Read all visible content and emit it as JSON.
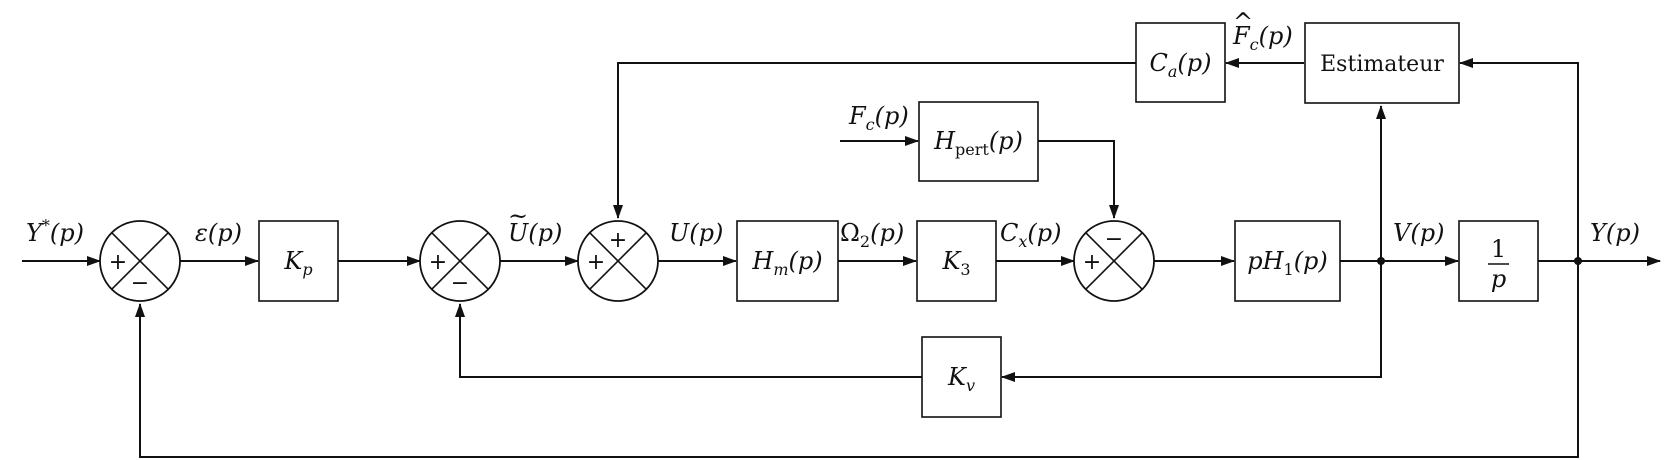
{
  "blocks": {
    "kp": {
      "sym": "K",
      "sub": "p",
      "arg": ""
    },
    "hm": {
      "sym": "H",
      "sub": "m",
      "arg": "(p)"
    },
    "k3": {
      "sym": "K",
      "sub": "3",
      "arg": ""
    },
    "ph1": {
      "pre": "pH",
      "sub": "1",
      "arg": "(p)"
    },
    "integrator": {
      "num": "1",
      "den": "p"
    },
    "kv": {
      "sym": "K",
      "sub": "v",
      "arg": ""
    },
    "hpert": {
      "sym": "H",
      "sub": "pert",
      "arg": "(p)"
    },
    "ca": {
      "sym": "C",
      "sub": "a",
      "arg": "(p)"
    },
    "estimator": {
      "label": "Estimateur"
    }
  },
  "signals": {
    "ystar": {
      "sym": "Y",
      "sup": "*",
      "arg": "(p)"
    },
    "epsilon": {
      "sym": "ε",
      "arg": "(p)"
    },
    "utilde": {
      "sym": "U",
      "accent": "~",
      "arg": "(p)"
    },
    "u": {
      "sym": "U",
      "arg": "(p)"
    },
    "omega2": {
      "sym": "Ω",
      "sub": "2",
      "arg": "(p)"
    },
    "cx": {
      "sym": "C",
      "sub": "x",
      "arg": "(p)"
    },
    "v": {
      "sym": "V",
      "arg": "(p)"
    },
    "y": {
      "sym": "Y",
      "arg": "(p)"
    },
    "fc": {
      "sym": "F",
      "sub": "c",
      "arg": "(p)"
    },
    "fchat": {
      "sym": "F",
      "accent": "^",
      "sub": "c",
      "arg": "(p)"
    }
  },
  "summers": {
    "s1": {
      "left": "+",
      "bottom": "−"
    },
    "s2": {
      "left": "+",
      "bottom": "−"
    },
    "s3": {
      "left": "+",
      "top": "+"
    },
    "s4": {
      "left": "+",
      "top": "−"
    }
  }
}
